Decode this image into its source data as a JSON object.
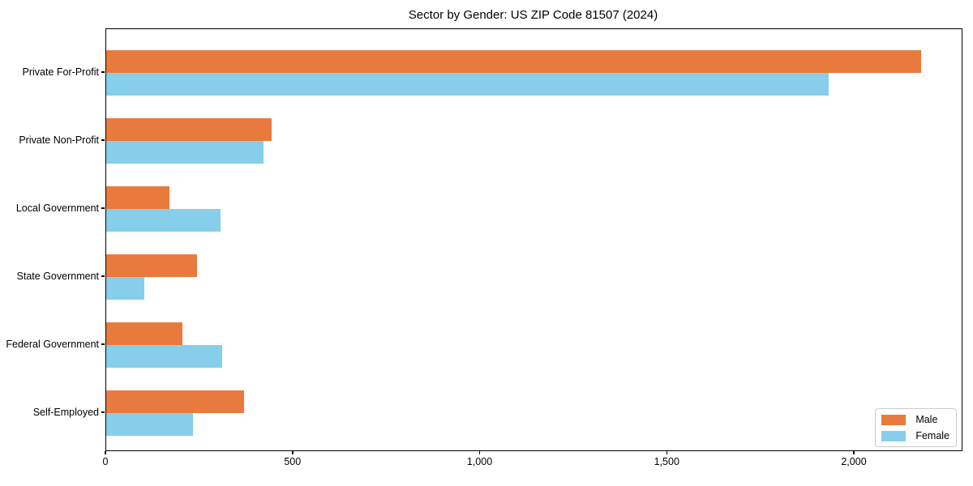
{
  "chart_data": {
    "type": "bar",
    "orientation": "horizontal",
    "title": "Sector by Gender: US ZIP Code 81507 (2024)",
    "categories": [
      "Private For-Profit",
      "Private Non-Profit",
      "Local Government",
      "State Government",
      "Federal Government",
      "Self-Employed"
    ],
    "series": [
      {
        "name": "Male",
        "color": "#E97A3D",
        "values": [
          2178,
          443,
          168,
          242,
          204,
          368
        ]
      },
      {
        "name": "Female",
        "color": "#87CEEB",
        "values": [
          1931,
          420,
          305,
          102,
          309,
          231
        ]
      }
    ],
    "xlabel": "",
    "ylabel": "",
    "xlim": [
      0,
      2286
    ],
    "xticks": [
      0,
      500,
      1000,
      1500,
      2000
    ],
    "xtick_labels": [
      "0",
      "500",
      "1,000",
      "1,500",
      "2,000"
    ],
    "grid": false,
    "legend_position": "lower right"
  }
}
